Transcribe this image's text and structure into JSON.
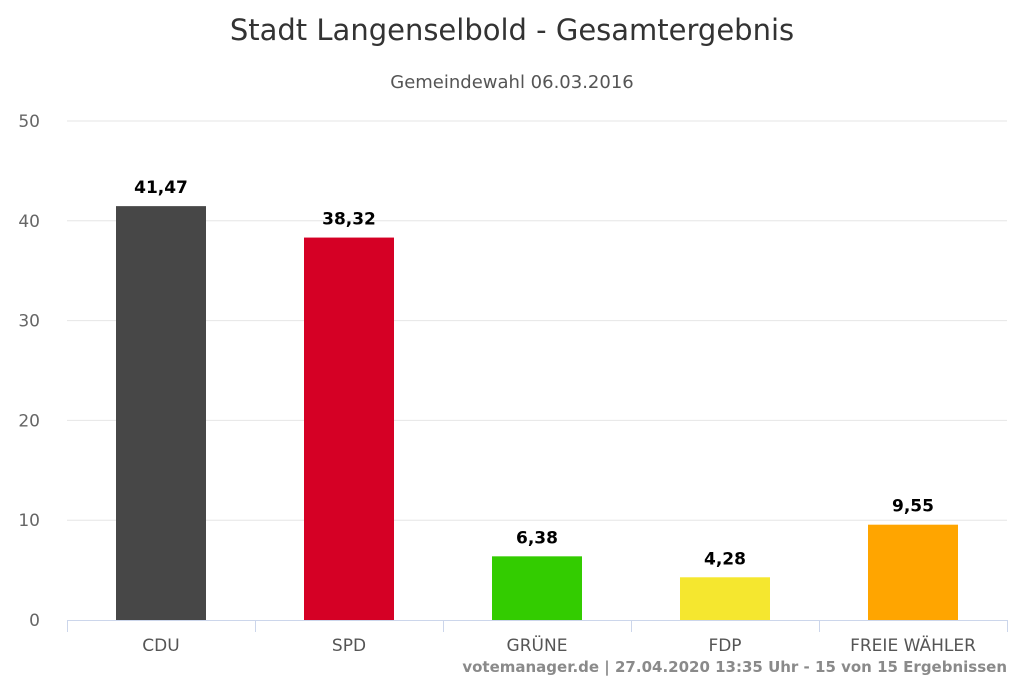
{
  "chart_data": {
    "type": "bar",
    "title": "Stadt Langenselbold - Gesamtergebnis",
    "subtitle": "Gemeindewahl 06.03.2016",
    "categories": [
      "CDU",
      "SPD",
      "GRÜNE",
      "FDP",
      "FREIE WÄHLER"
    ],
    "values": [
      41.47,
      38.32,
      6.38,
      4.28,
      9.55
    ],
    "value_labels": [
      "41,47",
      "38,32",
      "6,38",
      "4,28",
      "9,55"
    ],
    "colors": [
      "#474747",
      "#d50025",
      "#33cc00",
      "#f5e72f",
      "#ffa500"
    ],
    "ylim": [
      0,
      50
    ],
    "yticks": [
      "0",
      "10",
      "20",
      "30",
      "40",
      "50"
    ],
    "grid": true,
    "xlabel": "",
    "ylabel": ""
  },
  "credit": "votemanager.de | 27.04.2020 13:35 Uhr - 15 von 15 Ergebnissen"
}
